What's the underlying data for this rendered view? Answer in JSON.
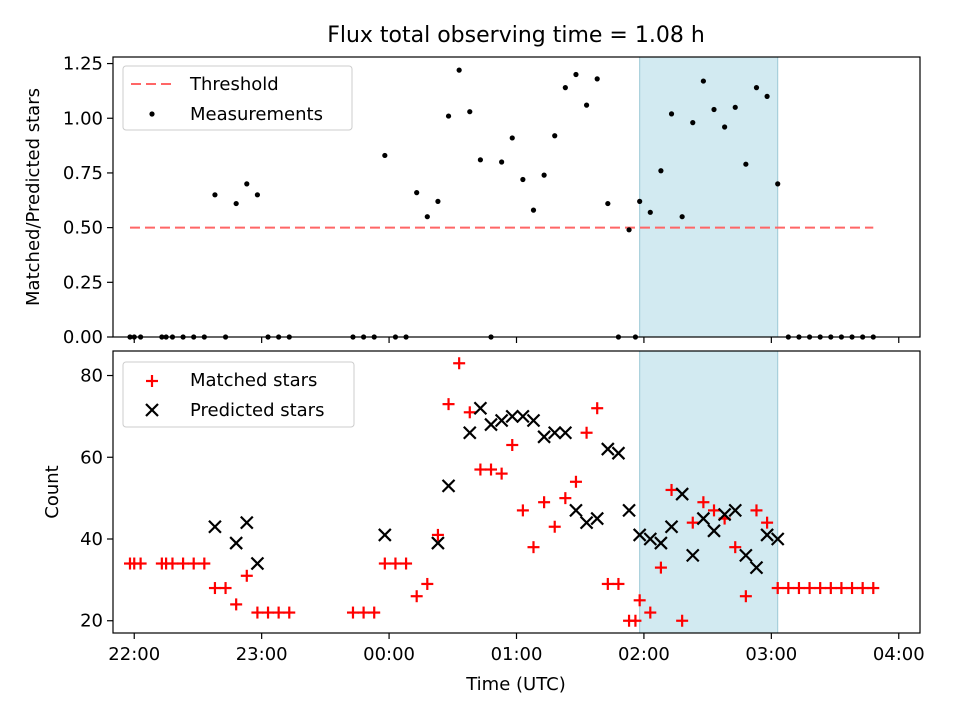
{
  "chart_data": [
    {
      "type": "scatter",
      "title": "Flux total observing time = 1.08 h",
      "xlabel": "",
      "ylabel": "Matched/Predicted stars",
      "ylim": [
        0,
        1.28
      ],
      "yticks": [
        "0.00",
        "0.25",
        "0.50",
        "0.75",
        "1.00",
        "1.25"
      ],
      "grid": false,
      "legend_position": "top-left",
      "shaded_region": {
        "x_start": "01:58",
        "x_end": "03:03",
        "color": "#add8e6"
      },
      "threshold": {
        "name": "Threshold",
        "value": 0.5,
        "x_start": "21:58",
        "x_end": "03:48",
        "color": "#ff6666",
        "style": "dashed"
      },
      "series": [
        {
          "name": "Measurements",
          "marker": "dot",
          "color": "#000000",
          "x": [
            "21:58",
            "22:00",
            "22:03",
            "22:13",
            "22:15",
            "22:18",
            "22:23",
            "22:28",
            "22:33",
            "22:38",
            "22:43",
            "22:48",
            "22:53",
            "22:58",
            "23:03",
            "23:08",
            "23:13",
            "23:43",
            "23:48",
            "23:53",
            "23:58",
            "24:03",
            "24:08",
            "24:13",
            "24:18",
            "24:23",
            "24:28",
            "24:33",
            "24:38",
            "24:43",
            "24:48",
            "24:53",
            "24:58",
            "25:03",
            "25:08",
            "25:13",
            "25:18",
            "25:23",
            "25:28",
            "25:33",
            "25:38",
            "25:43",
            "25:48",
            "25:53",
            "25:56",
            "25:58",
            "26:03",
            "26:08",
            "26:13",
            "26:18",
            "26:23",
            "26:28",
            "26:33",
            "26:38",
            "26:43",
            "26:48",
            "26:53",
            "26:58",
            "27:03",
            "27:08",
            "27:13",
            "27:18",
            "27:23",
            "27:28",
            "27:33",
            "27:38",
            "27:43",
            "27:48"
          ],
          "y": [
            0,
            0,
            0,
            0,
            0,
            0,
            0,
            0,
            0,
            0.65,
            0,
            0.61,
            0.7,
            0.65,
            0,
            0,
            0,
            0,
            0,
            0,
            0.83,
            0,
            0,
            0.66,
            0.55,
            0.62,
            1.01,
            1.22,
            1.03,
            0.81,
            0,
            0.8,
            0.91,
            0.72,
            0.58,
            0.74,
            0.92,
            1.14,
            1.2,
            1.06,
            1.18,
            0.61,
            0,
            0.49,
            0,
            0.62,
            0.57,
            0.76,
            1.02,
            0.55,
            0.98,
            1.17,
            1.04,
            0.96,
            1.05,
            0.79,
            1.14,
            1.1,
            0.7,
            0,
            0,
            0,
            0,
            0,
            0,
            0,
            0,
            0
          ]
        }
      ]
    },
    {
      "type": "scatter",
      "title": "",
      "xlabel": "Time (UTC)",
      "ylabel": "Count",
      "ylim": [
        17,
        86
      ],
      "yticks": [
        "20",
        "40",
        "60",
        "80"
      ],
      "xlim": [
        "21:50",
        "04:10"
      ],
      "xticks": [
        "22:00",
        "23:00",
        "00:00",
        "01:00",
        "02:00",
        "03:00",
        "04:00"
      ],
      "grid": false,
      "legend_position": "top-left",
      "shaded_region": {
        "x_start": "01:58",
        "x_end": "03:03",
        "color": "#add8e6"
      },
      "series": [
        {
          "name": "Matched stars",
          "marker": "plus",
          "color": "#ff0000",
          "x": [
            "21:58",
            "22:00",
            "22:03",
            "22:13",
            "22:15",
            "22:18",
            "22:23",
            "22:28",
            "22:33",
            "22:38",
            "22:43",
            "22:48",
            "22:53",
            "22:58",
            "23:03",
            "23:08",
            "23:13",
            "23:43",
            "23:48",
            "23:53",
            "23:58",
            "24:03",
            "24:08",
            "24:13",
            "24:18",
            "24:23",
            "24:28",
            "24:33",
            "24:38",
            "24:43",
            "24:48",
            "24:53",
            "24:58",
            "25:03",
            "25:08",
            "25:13",
            "25:18",
            "25:23",
            "25:28",
            "25:33",
            "25:38",
            "25:43",
            "25:48",
            "25:53",
            "25:56",
            "25:58",
            "26:03",
            "26:08",
            "26:13",
            "26:18",
            "26:23",
            "26:28",
            "26:33",
            "26:38",
            "26:43",
            "26:48",
            "26:53",
            "26:58",
            "27:03",
            "27:08",
            "27:13",
            "27:18",
            "27:23",
            "27:28",
            "27:33",
            "27:38",
            "27:43",
            "27:48"
          ],
          "y": [
            34,
            34,
            34,
            34,
            34,
            34,
            34,
            34,
            34,
            28,
            28,
            24,
            31,
            22,
            22,
            22,
            22,
            22,
            22,
            22,
            34,
            34,
            34,
            26,
            29,
            41,
            73,
            83,
            71,
            57,
            57,
            56,
            63,
            47,
            38,
            49,
            43,
            50,
            54,
            66,
            72,
            29,
            29,
            20,
            20,
            25,
            22,
            33,
            52,
            20,
            44,
            49,
            47,
            45,
            38,
            26,
            47,
            44,
            28,
            28,
            28,
            28,
            28,
            28,
            28,
            28,
            28,
            28
          ]
        },
        {
          "name": "Predicted stars",
          "marker": "x",
          "color": "#000000",
          "x": [
            "22:38",
            "22:48",
            "22:53",
            "22:58",
            "23:58",
            "24:23",
            "24:28",
            "24:38",
            "24:43",
            "24:48",
            "24:53",
            "24:58",
            "25:03",
            "25:08",
            "25:13",
            "25:18",
            "25:23",
            "25:28",
            "25:33",
            "25:38",
            "25:43",
            "25:48",
            "25:53",
            "25:58",
            "26:03",
            "26:08",
            "26:13",
            "26:18",
            "26:23",
            "26:28",
            "26:33",
            "26:38",
            "26:43",
            "26:48",
            "26:53",
            "26:58",
            "27:03"
          ],
          "y": [
            43,
            39,
            44,
            34,
            41,
            39,
            53,
            66,
            72,
            68,
            69,
            70,
            70,
            69,
            65,
            66,
            66,
            47,
            44,
            45,
            62,
            61,
            47,
            41,
            40,
            39,
            43,
            51,
            36,
            45,
            42,
            46,
            47,
            36,
            33,
            41,
            40
          ]
        }
      ]
    }
  ]
}
